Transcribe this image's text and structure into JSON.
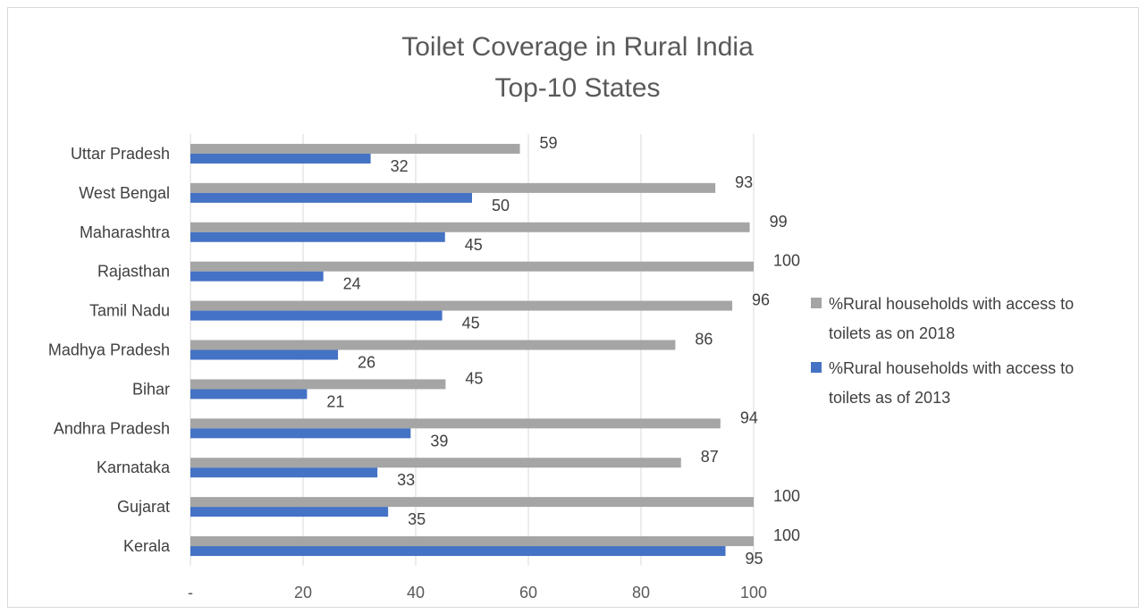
{
  "chart_data": {
    "type": "bar",
    "orientation": "horizontal",
    "title": [
      "Toilet Coverage in Rural India",
      "Top-10 States"
    ],
    "categories": [
      "Uttar Pradesh",
      "West Bengal",
      "Maharashtra",
      "Rajasthan",
      "Tamil Nadu",
      "Madhya Pradesh",
      "Bihar",
      "Andhra Pradesh",
      "Karnataka",
      "Gujarat",
      "Kerala"
    ],
    "series": [
      {
        "name": "%Rural households with access to toilets as on 2018",
        "legend_lines": [
          "%Rural households with access to",
          "toilets as on 2018"
        ],
        "color": "#a5a5a5",
        "values": [
          58.5,
          93.2,
          99.3,
          100,
          96.2,
          86.1,
          45.3,
          94.1,
          87.1,
          100,
          100
        ],
        "labels": [
          "59",
          "93",
          "99",
          "100",
          "96",
          "86",
          "45",
          "94",
          "87",
          "100",
          "100"
        ]
      },
      {
        "name": "%Rural households with access to toilets as of 2013",
        "legend_lines": [
          "%Rural households with access to",
          "toilets as of 2013"
        ],
        "color": "#4472c4",
        "values": [
          32,
          50,
          45.2,
          23.6,
          44.7,
          26.2,
          20.7,
          39.1,
          33.2,
          35.1,
          95
        ],
        "labels": [
          "32",
          "50",
          "45",
          "24",
          "45",
          "26",
          "21",
          "39",
          "33",
          "35",
          "95"
        ]
      }
    ],
    "xlim": [
      0,
      100
    ],
    "ticks": [
      {
        "value": 0,
        "label": "-"
      },
      {
        "value": 20,
        "label": "20"
      },
      {
        "value": 40,
        "label": "40"
      },
      {
        "value": 60,
        "label": "60"
      },
      {
        "value": 80,
        "label": "80"
      },
      {
        "value": 100,
        "label": "100"
      }
    ],
    "grid": true,
    "legend_position": "right"
  }
}
